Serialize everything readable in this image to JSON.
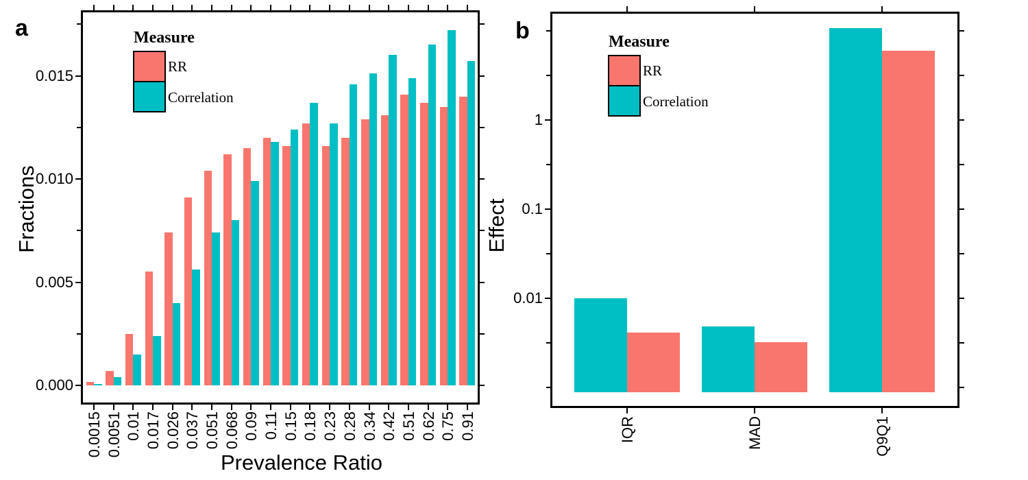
{
  "figure": {
    "panel_a": {
      "letter": "a",
      "x_title": "Prevalence Ratio",
      "y_title": "Fractions"
    },
    "panel_b": {
      "letter": "b",
      "x_title": "",
      "y_title": "Effect"
    }
  },
  "legend": {
    "title": "Measure",
    "entries": [
      {
        "label": "RR",
        "color": "#F8766D"
      },
      {
        "label": "Correlation",
        "color": "#00BFC4"
      }
    ]
  },
  "chart_data": [
    {
      "panel": "a",
      "type": "bar",
      "title": "",
      "xlabel": "Prevalence Ratio",
      "ylabel": "Fractions",
      "categories": [
        "0.0015",
        "0.0051",
        "0.01",
        "0.017",
        "0.026",
        "0.037",
        "0.051",
        "0.068",
        "0.09",
        "0.11",
        "0.15",
        "0.18",
        "0.23",
        "0.28",
        "0.34",
        "0.42",
        "0.51",
        "0.62",
        "0.75",
        "0.91"
      ],
      "series": [
        {
          "name": "RR",
          "color": "#F8766D",
          "values": [
            0.00015,
            0.0007,
            0.0025,
            0.0055,
            0.0074,
            0.0091,
            0.0104,
            0.0112,
            0.0115,
            0.012,
            0.0116,
            0.0127,
            0.0116,
            0.012,
            0.0129,
            0.0131,
            0.0141,
            0.0137,
            0.0135,
            0.014
          ]
        },
        {
          "name": "Correlation",
          "color": "#00BFC4",
          "values": [
            5e-05,
            0.0004,
            0.0015,
            0.0024,
            0.004,
            0.0056,
            0.0074,
            0.008,
            0.0099,
            0.0118,
            0.0124,
            0.0137,
            0.0127,
            0.0146,
            0.0151,
            0.016,
            0.0149,
            0.0165,
            0.0172,
            0.0157
          ]
        }
      ],
      "y_scale": "linear",
      "ylim": [
        0,
        0.0175
      ],
      "yticks": {
        "values": [
          0,
          0.005,
          0.01,
          0.015
        ],
        "labels": [
          "0.000",
          "0.005",
          "0.010",
          "0.015"
        ]
      },
      "y_minor_ticks": [
        0.0025,
        0.0075,
        0.0125,
        0.0175
      ],
      "grid": false,
      "legend_position": "inside-top-left"
    },
    {
      "panel": "b",
      "type": "bar",
      "title": "",
      "xlabel": "",
      "ylabel": "Effect",
      "categories": [
        "IQR",
        "MAD",
        "Q9Q1"
      ],
      "series": [
        {
          "name": "Correlation",
          "color": "#00BFC4",
          "values": [
            0.01,
            0.0048,
            10.7
          ]
        },
        {
          "name": "RR",
          "color": "#F8766D",
          "values": [
            0.0041,
            0.0032,
            6.0
          ]
        }
      ],
      "y_scale": "log",
      "ylim": [
        0.00055,
        16
      ],
      "bar_base": 0.00088,
      "yticks": {
        "values": [
          1,
          0.1,
          0.01
        ],
        "labels": [
          "1",
          "0.1",
          "0.01"
        ]
      },
      "y_minor_ticks": [
        10,
        3.1623,
        0.31623,
        0.031623,
        0.0031623,
        0.001
      ],
      "grid": false,
      "legend_position": "inside-top-left"
    }
  ]
}
